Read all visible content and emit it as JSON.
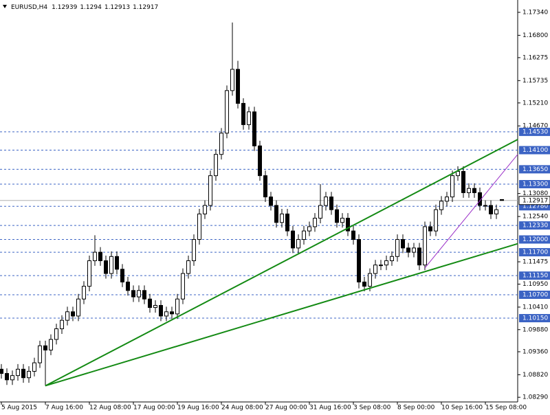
{
  "chart_data": {
    "type": "candlestick",
    "title": "EURUSD,H4",
    "categories": [
      "5 Aug 2015",
      null,
      null,
      null,
      null,
      null,
      null,
      null,
      "7 Aug 16:00",
      null,
      null,
      null,
      null,
      null,
      null,
      null,
      "12 Aug 08:00",
      null,
      null,
      null,
      null,
      null,
      null,
      null,
      "17 Aug 00:00",
      null,
      null,
      null,
      null,
      null,
      null,
      null,
      "19 Aug 16:00",
      null,
      null,
      null,
      null,
      null,
      null,
      null,
      "24 Aug 08:00",
      null,
      null,
      null,
      null,
      null,
      null,
      null,
      "27 Aug 00:00",
      null,
      null,
      null,
      null,
      null,
      null,
      null,
      "31 Aug 16:00",
      null,
      null,
      null,
      null,
      null,
      null,
      null,
      "3 Sep 08:00",
      null,
      null,
      null,
      null,
      null,
      null,
      null,
      "8 Sep 00:00",
      null,
      null,
      null,
      null,
      null,
      null,
      null,
      "10 Sep 16:00",
      null,
      null,
      null,
      null,
      null,
      null,
      null,
      "15 Sep 08:00",
      null,
      null,
      null
    ],
    "open": [
      1.0895,
      1.0885,
      1.087,
      1.088,
      1.0895,
      1.0875,
      1.089,
      1.091,
      1.095,
      1.094,
      1.0965,
      1.099,
      1.101,
      1.103,
      1.102,
      1.106,
      1.109,
      1.115,
      1.117,
      1.115,
      1.112,
      1.116,
      1.113,
      1.11,
      1.108,
      1.1065,
      1.108,
      1.106,
      1.104,
      1.1045,
      1.102,
      1.103,
      1.1025,
      1.106,
      1.112,
      1.115,
      1.12,
      1.126,
      1.128,
      1.135,
      1.14,
      1.145,
      1.155,
      1.16,
      1.152,
      1.147,
      1.15,
      1.142,
      1.135,
      1.13,
      1.128,
      1.124,
      1.126,
      1.122,
      1.118,
      1.12,
      1.122,
      1.123,
      1.125,
      1.128,
      1.13,
      1.127,
      1.124,
      1.125,
      1.122,
      1.12,
      1.11,
      1.109,
      1.112,
      1.114,
      1.114,
      1.115,
      1.116,
      1.12,
      1.118,
      1.117,
      1.118,
      1.114,
      1.123,
      1.122,
      1.127,
      1.129,
      1.13,
      1.135,
      1.136,
      1.131,
      1.132,
      1.131,
      1.128,
      1.128,
      1.126,
      1.12939
    ],
    "high": [
      1.0907,
      1.0897,
      1.0892,
      1.0907,
      1.0907,
      1.0902,
      1.0922,
      1.0962,
      1.0962,
      1.0977,
      1.1002,
      1.1022,
      1.1042,
      1.1042,
      1.1072,
      1.1102,
      1.1162,
      1.121,
      1.1182,
      1.1162,
      1.1172,
      1.1172,
      1.1142,
      1.1112,
      1.1092,
      1.1092,
      1.1092,
      1.1072,
      1.1057,
      1.1057,
      1.1042,
      1.1042,
      1.1072,
      1.1132,
      1.1162,
      1.1212,
      1.1272,
      1.1292,
      1.1362,
      1.1412,
      1.1462,
      1.1562,
      1.171,
      1.162,
      1.1532,
      1.1512,
      1.1512,
      1.1432,
      1.1362,
      1.1312,
      1.1292,
      1.1272,
      1.1272,
      1.1232,
      1.1212,
      1.1232,
      1.1242,
      1.1262,
      1.133,
      1.1312,
      1.1312,
      1.1282,
      1.1262,
      1.1262,
      1.1232,
      1.1212,
      1.1112,
      1.1132,
      1.1152,
      1.1152,
      1.1162,
      1.1172,
      1.1212,
      1.1212,
      1.1192,
      1.1192,
      1.1192,
      1.1242,
      1.1242,
      1.1282,
      1.1302,
      1.1312,
      1.1362,
      1.1372,
      1.1372,
      1.1332,
      1.1332,
      1.1322,
      1.1292,
      1.1292,
      1.1282,
      1.1294
    ],
    "low": [
      1.0873,
      1.0858,
      1.0858,
      1.0868,
      1.0863,
      1.0863,
      1.0878,
      1.0898,
      1.0856,
      1.0928,
      1.0953,
      1.0978,
      1.0998,
      1.1008,
      1.1008,
      1.1048,
      1.1078,
      1.1138,
      1.1138,
      1.1108,
      1.1108,
      1.1118,
      1.1088,
      1.1068,
      1.1053,
      1.1053,
      1.1048,
      1.1028,
      1.1028,
      1.1008,
      1.1008,
      1.1013,
      1.1013,
      1.1048,
      1.1108,
      1.1138,
      1.1188,
      1.1248,
      1.1268,
      1.1338,
      1.1388,
      1.1438,
      1.1538,
      1.1508,
      1.1458,
      1.1458,
      1.1408,
      1.1338,
      1.1288,
      1.1268,
      1.1228,
      1.1228,
      1.1208,
      1.1168,
      1.1168,
      1.1188,
      1.1208,
      1.1218,
      1.1238,
      1.1268,
      1.1258,
      1.1228,
      1.1228,
      1.1208,
      1.1188,
      1.1085,
      1.1078,
      1.1078,
      1.1108,
      1.1128,
      1.1128,
      1.1138,
      1.1148,
      1.1168,
      1.1158,
      1.1158,
      1.1128,
      1.1128,
      1.1208,
      1.1208,
      1.1258,
      1.1278,
      1.1288,
      1.1338,
      1.1298,
      1.1298,
      1.1298,
      1.1268,
      1.1268,
      1.1248,
      1.1248,
      1.12913
    ],
    "close": [
      1.0885,
      1.087,
      1.088,
      1.0895,
      1.0875,
      1.089,
      1.091,
      1.095,
      1.094,
      1.0965,
      1.099,
      1.101,
      1.103,
      1.102,
      1.106,
      1.109,
      1.115,
      1.117,
      1.115,
      1.112,
      1.116,
      1.113,
      1.11,
      1.108,
      1.1065,
      1.108,
      1.106,
      1.104,
      1.1045,
      1.102,
      1.103,
      1.1025,
      1.106,
      1.112,
      1.115,
      1.12,
      1.126,
      1.128,
      1.135,
      1.14,
      1.145,
      1.155,
      1.16,
      1.152,
      1.147,
      1.15,
      1.142,
      1.135,
      1.13,
      1.128,
      1.124,
      1.126,
      1.122,
      1.118,
      1.12,
      1.122,
      1.123,
      1.125,
      1.128,
      1.13,
      1.127,
      1.124,
      1.125,
      1.122,
      1.12,
      1.11,
      1.109,
      1.112,
      1.114,
      1.114,
      1.115,
      1.116,
      1.12,
      1.118,
      1.117,
      1.118,
      1.114,
      1.123,
      1.122,
      1.127,
      1.129,
      1.13,
      1.135,
      1.136,
      1.131,
      1.132,
      1.131,
      1.128,
      1.128,
      1.126,
      1.127,
      1.12917
    ],
    "ylim": [
      1.0818,
      1.1763
    ],
    "yticks": [
      {
        "value": 1.1734,
        "label": "1.17340"
      },
      {
        "value": 1.168,
        "label": "1.16800"
      },
      {
        "value": 1.16275,
        "label": "1.16275"
      },
      {
        "value": 1.15735,
        "label": "1.15735"
      },
      {
        "value": 1.1521,
        "label": "1.15210"
      },
      {
        "value": 1.1467,
        "label": "1.14670"
      },
      {
        "value": 1.1308,
        "label": "1.13080"
      },
      {
        "value": 1.1254,
        "label": "1.12540"
      },
      {
        "value": 1.11475,
        "label": "1.11475"
      },
      {
        "value": 1.1095,
        "label": "1.10950"
      },
      {
        "value": 1.1041,
        "label": "1.10410"
      },
      {
        "value": 1.0988,
        "label": "1.09880"
      },
      {
        "value": 1.0936,
        "label": "1.09360"
      },
      {
        "value": 1.0882,
        "label": "1.08820"
      },
      {
        "value": 1.0829,
        "label": "1.08290"
      }
    ],
    "levels": [
      {
        "value": 1.1453,
        "label": "1.14530"
      },
      {
        "value": 1.141,
        "label": "1.14100"
      },
      {
        "value": 1.1365,
        "label": "1.13650"
      },
      {
        "value": 1.133,
        "label": "1.13300"
      },
      {
        "value": 1.1278,
        "label": "1.12780"
      },
      {
        "value": 1.1233,
        "label": "1.12330"
      },
      {
        "value": 1.12,
        "label": "1.12000"
      },
      {
        "value": 1.117,
        "label": "1.11700"
      },
      {
        "value": 1.1115,
        "label": "1.11150"
      },
      {
        "value": 1.107,
        "label": "1.10700"
      },
      {
        "value": 1.1015,
        "label": "1.10150"
      }
    ],
    "level_color": "#3b63c4",
    "trendlines": [
      {
        "color": "#138a13",
        "x": [
          8,
          93.875
        ],
        "y": [
          1.0856,
          1.1435
        ]
      },
      {
        "color": "#138a13",
        "x": [
          8,
          93.875
        ],
        "y": [
          1.0856,
          1.119
        ]
      },
      {
        "color": "#9b30c8",
        "x": [
          77,
          93.875
        ],
        "y": [
          1.1133,
          1.14
        ]
      }
    ]
  }
}
